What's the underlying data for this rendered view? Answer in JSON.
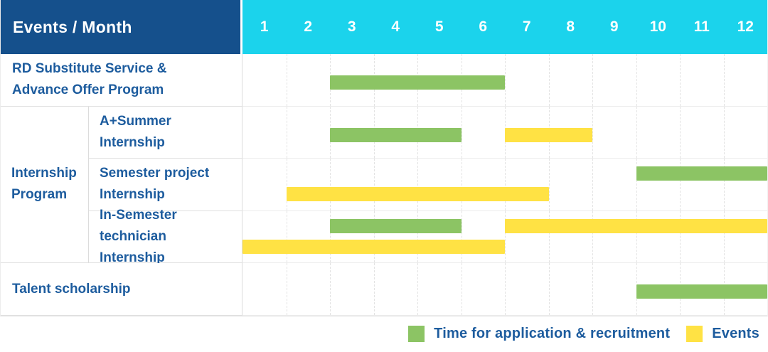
{
  "colors": {
    "header_bg": "#15508C",
    "months_bg": "#1BD3EC",
    "text_blue": "#1D5C9E",
    "application_green": "#8CC464",
    "events_yellow": "#FFE244"
  },
  "header": {
    "title": "Events / Month",
    "months": [
      "1",
      "2",
      "3",
      "4",
      "5",
      "6",
      "7",
      "8",
      "9",
      "10",
      "11",
      "12"
    ]
  },
  "legend": {
    "items": [
      {
        "key": "application",
        "label": "Time for application & recruitment",
        "color": "#8CC464"
      },
      {
        "key": "events",
        "label": "Events",
        "color": "#FFE244"
      }
    ]
  },
  "chart_data": {
    "type": "bar",
    "variant": "gantt",
    "title": "Events / Month",
    "x_axis": {
      "label": "Month",
      "ticks": [
        1,
        2,
        3,
        4,
        5,
        6,
        7,
        8,
        9,
        10,
        11,
        12
      ],
      "range": [
        1,
        12
      ]
    },
    "series_legend": [
      {
        "name": "Time for application & recruitment",
        "color": "#8CC464"
      },
      {
        "name": "Events",
        "color": "#FFE244"
      }
    ],
    "rows": [
      {
        "label": "RD Substitute Service & Advance Offer Program",
        "group": null,
        "lines": [
          [
            {
              "series": "application",
              "start_month": 3,
              "end_month": 6
            }
          ]
        ]
      },
      {
        "label": "A+Summer Internship",
        "group": "Internship Program",
        "lines": [
          [
            {
              "series": "application",
              "start_month": 3,
              "end_month": 5
            },
            {
              "series": "events",
              "start_month": 7,
              "end_month": 8
            }
          ]
        ]
      },
      {
        "label": "Semester project Internship",
        "group": "Internship Program",
        "lines": [
          [
            {
              "series": "application",
              "start_month": 10,
              "end_month": 12
            }
          ],
          [
            {
              "series": "events",
              "start_month": 2,
              "end_month": 7
            }
          ]
        ]
      },
      {
        "label": "In-Semester technician Internship",
        "group": "Internship Program",
        "lines": [
          [
            {
              "series": "application",
              "start_month": 3,
              "end_month": 5
            },
            {
              "series": "events",
              "start_month": 7,
              "end_month": 12
            }
          ],
          [
            {
              "series": "events",
              "start_month": 1,
              "end_month": 6
            }
          ]
        ]
      },
      {
        "label": "Talent scholarship",
        "group": null,
        "lines": [
          [
            {
              "series": "application",
              "start_month": 10,
              "end_month": 12
            }
          ]
        ]
      }
    ]
  }
}
